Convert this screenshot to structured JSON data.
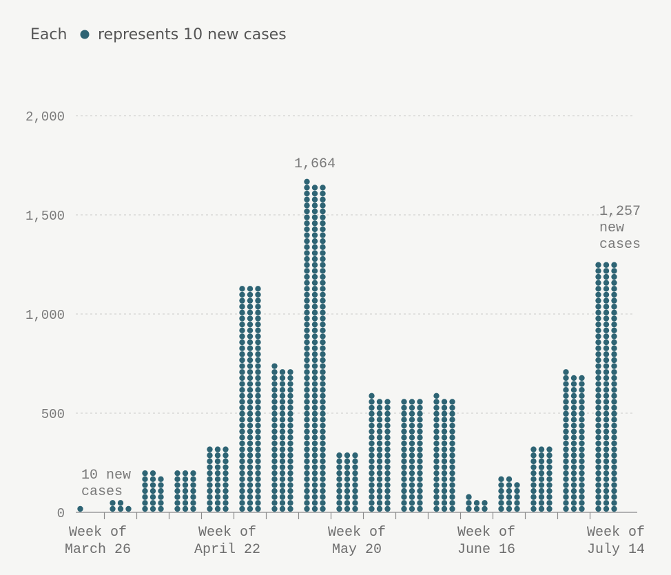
{
  "chart_data": {
    "type": "bar",
    "style": "dot-stacked columns",
    "legend": {
      "prefix": "Each",
      "suffix": "represents 10 new cases",
      "placement": "top-left"
    },
    "dot_value": 10,
    "dot_color": "#2e6474",
    "ylim": [
      0,
      2000
    ],
    "yticks": [
      0,
      500,
      1000,
      1500,
      2000
    ],
    "ytick_labels": [
      "0",
      "500",
      "1,000",
      "1,500",
      "2,000"
    ],
    "grid": true,
    "x_tick_labels": [
      {
        "index": 0,
        "line1": "Week of",
        "line2": "March 26"
      },
      {
        "index": 4,
        "line1": "Week of",
        "line2": "April 22"
      },
      {
        "index": 8,
        "line1": "Week of",
        "line2": "May 20"
      },
      {
        "index": 12,
        "line1": "Week of",
        "line2": "June 16"
      },
      {
        "index": 16,
        "line1": "Week of",
        "line2": "July 14"
      }
    ],
    "values": [
      10,
      50,
      200,
      210,
      330,
      1140,
      730,
      1664,
      300,
      580,
      570,
      580,
      70,
      170,
      330,
      700,
      1257
    ],
    "annotations": [
      {
        "index": 0,
        "lines": [
          "10 new",
          "cases"
        ],
        "align": "left"
      },
      {
        "index": 7,
        "lines": [
          "1,664"
        ],
        "align": "center"
      },
      {
        "index": 16,
        "lines": [
          "1,257",
          "new",
          "cases"
        ],
        "align": "left"
      }
    ]
  }
}
